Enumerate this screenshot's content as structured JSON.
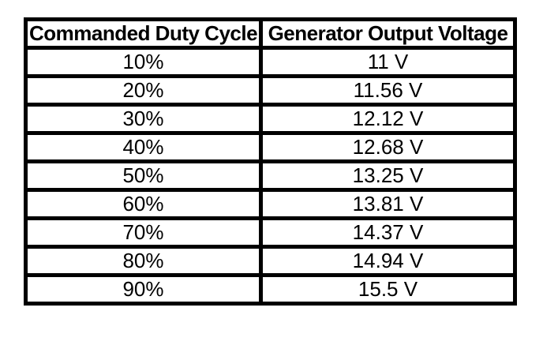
{
  "table": {
    "columns": [
      "Commanded Duty Cycle",
      "Generator Output Voltage"
    ],
    "rows": [
      [
        "10%",
        "11 V"
      ],
      [
        "20%",
        "11.56 V"
      ],
      [
        "30%",
        "12.12 V"
      ],
      [
        "40%",
        "12.68 V"
      ],
      [
        "50%",
        "13.25 V"
      ],
      [
        "60%",
        "13.81 V"
      ],
      [
        "70%",
        "14.37 V"
      ],
      [
        "80%",
        "14.94 V"
      ],
      [
        "90%",
        "15.5 V"
      ]
    ],
    "border_color": "#000000",
    "text_color": "#000000",
    "background_color": "#ffffff"
  },
  "chart_data": {
    "type": "table",
    "title": "",
    "columns": [
      "Commanded Duty Cycle",
      "Generator Output Voltage"
    ],
    "x_label": "Commanded Duty Cycle",
    "y_label": "Generator Output Voltage",
    "x_percent": [
      10,
      20,
      30,
      40,
      50,
      60,
      70,
      80,
      90
    ],
    "y_volts": [
      11,
      11.56,
      12.12,
      12.68,
      13.25,
      13.81,
      14.37,
      14.94,
      15.5
    ],
    "rows": [
      [
        "10%",
        "11 V"
      ],
      [
        "20%",
        "11.56 V"
      ],
      [
        "30%",
        "12.12 V"
      ],
      [
        "40%",
        "12.68 V"
      ],
      [
        "50%",
        "13.25 V"
      ],
      [
        "60%",
        "13.81 V"
      ],
      [
        "70%",
        "14.37 V"
      ],
      [
        "80%",
        "14.94 V"
      ],
      [
        "90%",
        "15.5 V"
      ]
    ]
  }
}
